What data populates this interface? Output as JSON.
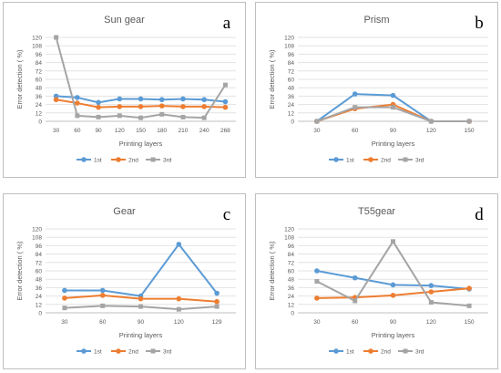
{
  "chart_data": [
    {
      "type": "line",
      "title": "Sun gear",
      "panel_letter": "a",
      "xlabel": "Printing layers",
      "ylabel": "Error detection ( %)",
      "categories": [
        "30",
        "60",
        "90",
        "120",
        "150",
        "180",
        "210",
        "240",
        "268"
      ],
      "ylim": [
        0,
        120
      ],
      "yticks": [
        0,
        12,
        24,
        36,
        48,
        60,
        72,
        84,
        96,
        108,
        120
      ],
      "grid": true,
      "legend_position": "bottom",
      "series": [
        {
          "name": "1st",
          "color": "#5b9bd5",
          "marker": "circle",
          "values": [
            36,
            34,
            27,
            32,
            32,
            31,
            32,
            31,
            28
          ]
        },
        {
          "name": "2nd",
          "color": "#ed7d31",
          "marker": "circle",
          "values": [
            31,
            26,
            20,
            21,
            21,
            22,
            21,
            21,
            20
          ]
        },
        {
          "name": "3rd",
          "color": "#a5a5a5",
          "marker": "square",
          "values": [
            120,
            8,
            6,
            8,
            5,
            10,
            6,
            5,
            52
          ]
        }
      ]
    },
    {
      "type": "line",
      "title": "Prism",
      "panel_letter": "b",
      "xlabel": "Printing layers",
      "ylabel": "Error detection ( %)",
      "categories": [
        "30",
        "60",
        "90",
        "120",
        "150"
      ],
      "ylim": [
        0,
        120
      ],
      "yticks": [
        0,
        12,
        24,
        36,
        48,
        60,
        72,
        84,
        96,
        108,
        120
      ],
      "grid": true,
      "legend_position": "bottom",
      "series": [
        {
          "name": "1st",
          "color": "#5b9bd5",
          "marker": "circle",
          "values": [
            0,
            39,
            37,
            0,
            0
          ]
        },
        {
          "name": "2nd",
          "color": "#ed7d31",
          "marker": "circle",
          "values": [
            0,
            18,
            24,
            0,
            0
          ]
        },
        {
          "name": "3rd",
          "color": "#a5a5a5",
          "marker": "square",
          "values": [
            0,
            20,
            20,
            0,
            0
          ]
        }
      ]
    },
    {
      "type": "line",
      "title": "Gear",
      "panel_letter": "c",
      "xlabel": "Printing layers",
      "ylabel": "Error detection ( %)",
      "categories": [
        "30",
        "60",
        "90",
        "120",
        "129"
      ],
      "ylim": [
        0,
        120
      ],
      "yticks": [
        0,
        12,
        24,
        36,
        48,
        60,
        72,
        84,
        96,
        108,
        120
      ],
      "grid": true,
      "legend_position": "bottom",
      "series": [
        {
          "name": "1st",
          "color": "#5b9bd5",
          "marker": "circle",
          "values": [
            32,
            32,
            24,
            98,
            28
          ]
        },
        {
          "name": "2nd",
          "color": "#ed7d31",
          "marker": "circle",
          "values": [
            21,
            25,
            20,
            20,
            16
          ]
        },
        {
          "name": "3rd",
          "color": "#a5a5a5",
          "marker": "square",
          "values": [
            7,
            10,
            9,
            5,
            9
          ]
        }
      ]
    },
    {
      "type": "line",
      "title": "T55gear",
      "panel_letter": "d",
      "xlabel": "Printing layers",
      "ylabel": "Error detection ( %)",
      "categories": [
        "30",
        "60",
        "90",
        "120",
        "150"
      ],
      "ylim": [
        0,
        120
      ],
      "yticks": [
        0,
        12,
        24,
        36,
        48,
        60,
        72,
        84,
        96,
        108,
        120
      ],
      "grid": true,
      "legend_position": "bottom",
      "series": [
        {
          "name": "1st",
          "color": "#5b9bd5",
          "marker": "circle",
          "values": [
            60,
            50,
            40,
            39,
            34
          ]
        },
        {
          "name": "2nd",
          "color": "#ed7d31",
          "marker": "circle",
          "values": [
            21,
            22,
            25,
            30,
            35
          ]
        },
        {
          "name": "3rd",
          "color": "#a5a5a5",
          "marker": "square",
          "values": [
            45,
            17,
            102,
            15,
            10
          ]
        }
      ]
    }
  ]
}
